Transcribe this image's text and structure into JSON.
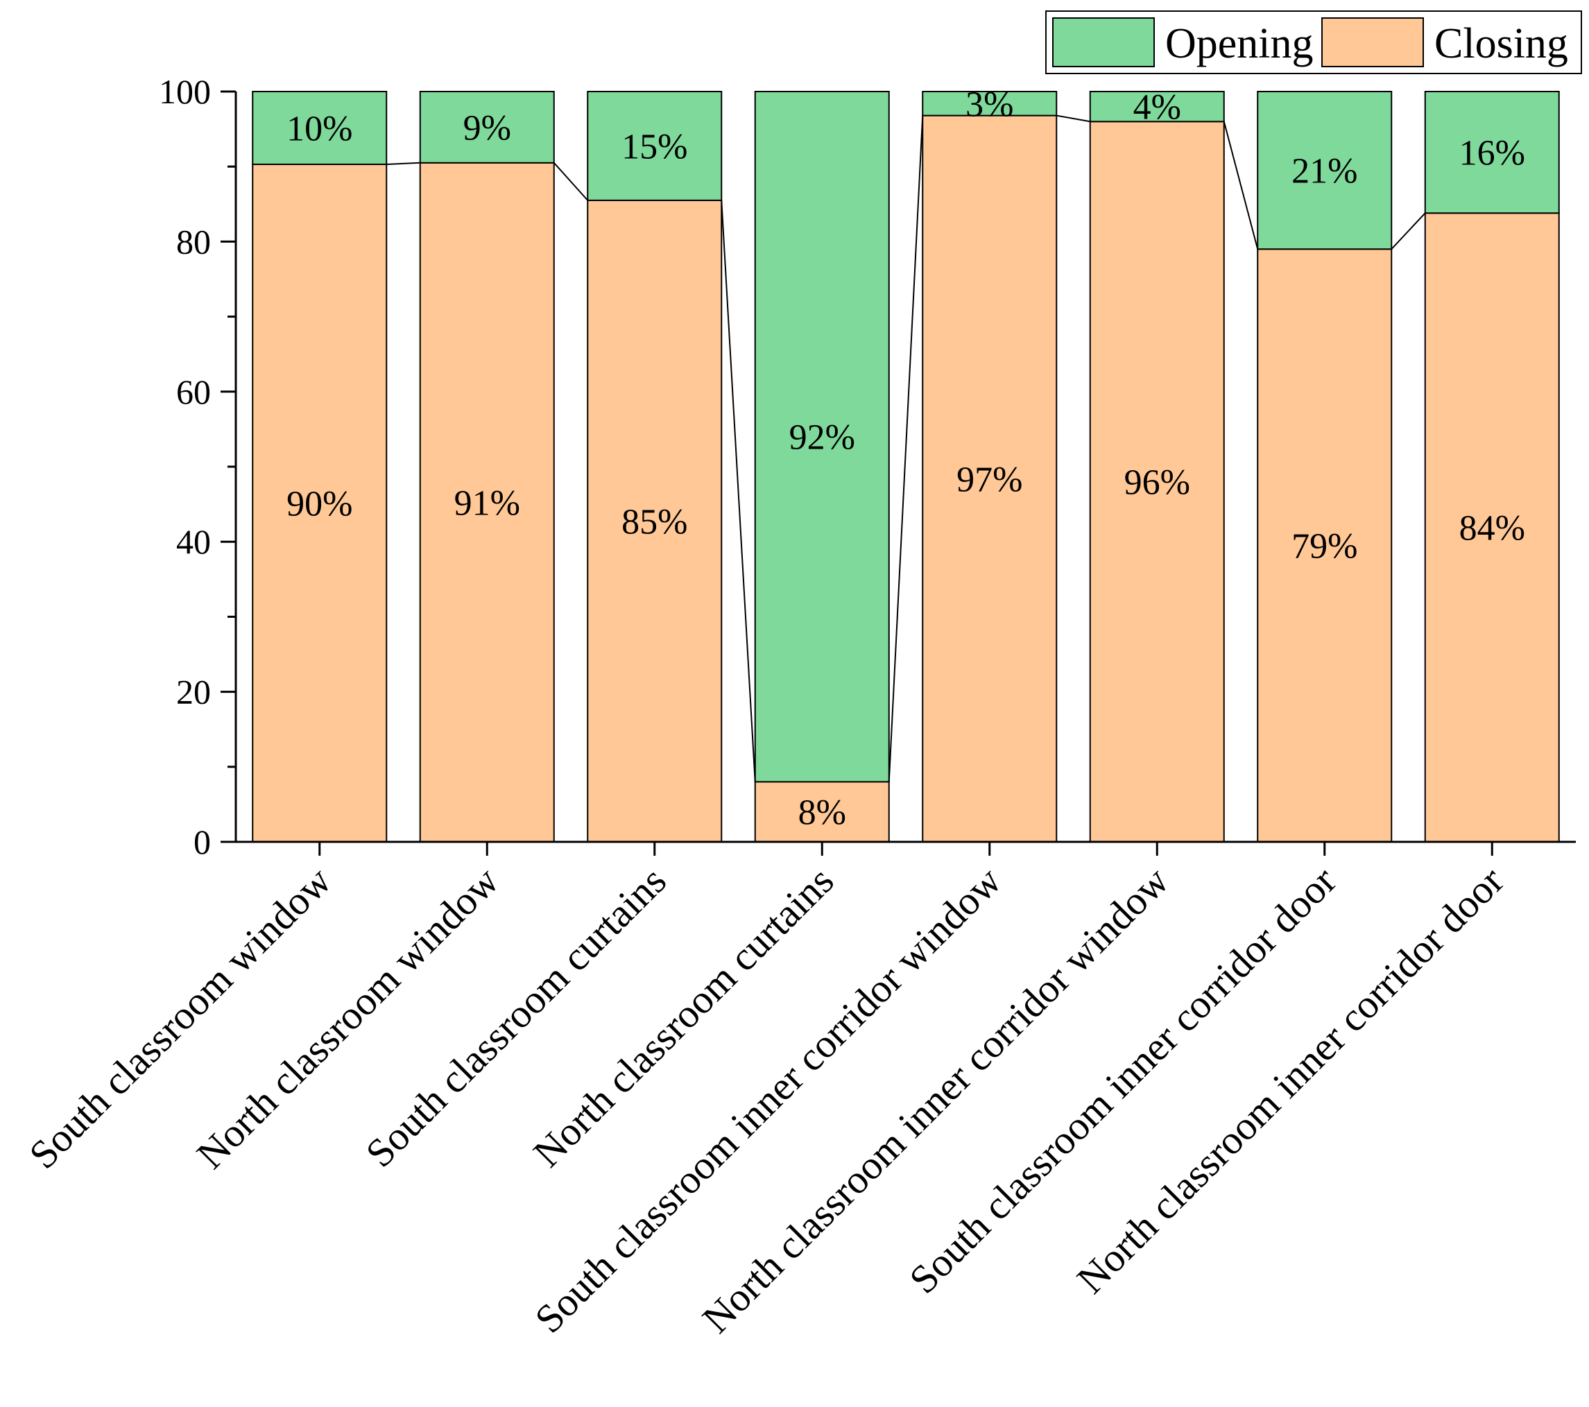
{
  "chart_data": {
    "type": "bar",
    "stacked": true,
    "categories": [
      "South classroom window",
      "North classroom window",
      "South classroom curtains",
      "North classroom curtains",
      "South classroom inner corridor window",
      "North classroom inner corridor window",
      "South classroom inner corridor door",
      "North classroom inner corridor door"
    ],
    "series": [
      {
        "name": "Closing",
        "color": "#FFC896",
        "values": [
          90.3,
          90.5,
          85.5,
          8.0,
          96.8,
          96.0,
          79.0,
          83.8
        ],
        "labels": [
          "90%",
          "91%",
          "85%",
          "8%",
          "97%",
          "96%",
          "79%",
          "84%"
        ]
      },
      {
        "name": "Opening",
        "color": "#7FD99B",
        "values": [
          9.7,
          9.5,
          14.5,
          92.0,
          3.2,
          4.0,
          21.0,
          16.2
        ],
        "labels": [
          "10%",
          "9%",
          "15%",
          "92%",
          "3%",
          "4%",
          "21%",
          "16%"
        ]
      }
    ],
    "legend": [
      "Opening",
      "Closing"
    ],
    "legend_position": "top-right",
    "connector_lines": true,
    "title": "",
    "xlabel": "",
    "ylabel": "",
    "ylim": [
      0,
      100
    ],
    "yticks": [
      0,
      20,
      40,
      60,
      80,
      100
    ],
    "grid": false
  }
}
